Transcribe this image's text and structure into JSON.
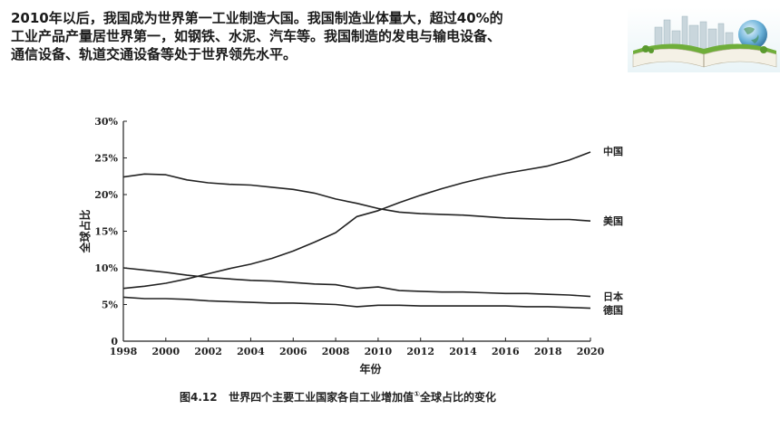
{
  "intro_lines": [
    "2010年以后，我国成为世界第一工业制造大国。我国制造业体量大，超过40%的",
    "工业产品产量居世界第一，如钢铁、水泥、汽车等。我国制造的发电与输电设备、",
    "通信设备、轨道交通设备等处于世界领先水平。"
  ],
  "caption": {
    "number": "图4.12",
    "text_before": "世界四个主要工业国家各自工业增加值",
    "footnote": "①",
    "text_after": "全球占比的变化"
  },
  "chart_data": {
    "type": "line",
    "title": "",
    "xlabel": "年份",
    "ylabel": "全球占比",
    "xlim": [
      1998,
      2020
    ],
    "ylim": [
      0,
      30
    ],
    "x_ticks": [
      "1998",
      "2000",
      "2002",
      "2004",
      "2006",
      "2008",
      "2010",
      "2012",
      "2014",
      "2016",
      "2018",
      "2020"
    ],
    "y_ticks": [
      "0",
      "5%",
      "10%",
      "15%",
      "20%",
      "25%",
      "30%"
    ],
    "x": [
      1998,
      1999,
      2000,
      2001,
      2002,
      2003,
      2004,
      2005,
      2006,
      2007,
      2008,
      2009,
      2010,
      2011,
      2012,
      2013,
      2014,
      2015,
      2016,
      2017,
      2018,
      2019,
      2020
    ],
    "series": [
      {
        "name": "中国",
        "values": [
          7.2,
          7.5,
          7.9,
          8.5,
          9.2,
          9.9,
          10.5,
          11.3,
          12.3,
          13.5,
          14.8,
          17.0,
          17.8,
          18.9,
          19.9,
          20.8,
          21.6,
          22.3,
          22.9,
          23.4,
          23.9,
          24.7,
          25.8
        ]
      },
      {
        "name": "美国",
        "values": [
          22.4,
          22.8,
          22.7,
          22.0,
          21.6,
          21.4,
          21.3,
          21.0,
          20.7,
          20.2,
          19.4,
          18.8,
          18.1,
          17.6,
          17.4,
          17.3,
          17.2,
          17.0,
          16.8,
          16.7,
          16.6,
          16.6,
          16.4
        ]
      },
      {
        "name": "日本",
        "values": [
          10.0,
          9.7,
          9.4,
          9.0,
          8.7,
          8.5,
          8.3,
          8.2,
          8.0,
          7.8,
          7.7,
          7.2,
          7.4,
          6.9,
          6.8,
          6.7,
          6.7,
          6.6,
          6.5,
          6.5,
          6.4,
          6.3,
          6.1
        ]
      },
      {
        "name": "德国",
        "values": [
          6.0,
          5.8,
          5.8,
          5.7,
          5.5,
          5.4,
          5.3,
          5.2,
          5.2,
          5.1,
          5.0,
          4.7,
          4.9,
          4.9,
          4.8,
          4.8,
          4.8,
          4.8,
          4.8,
          4.7,
          4.7,
          4.6,
          4.5
        ]
      }
    ],
    "legend": "line-end labels on right",
    "grid": false,
    "line_color": "#222222"
  }
}
